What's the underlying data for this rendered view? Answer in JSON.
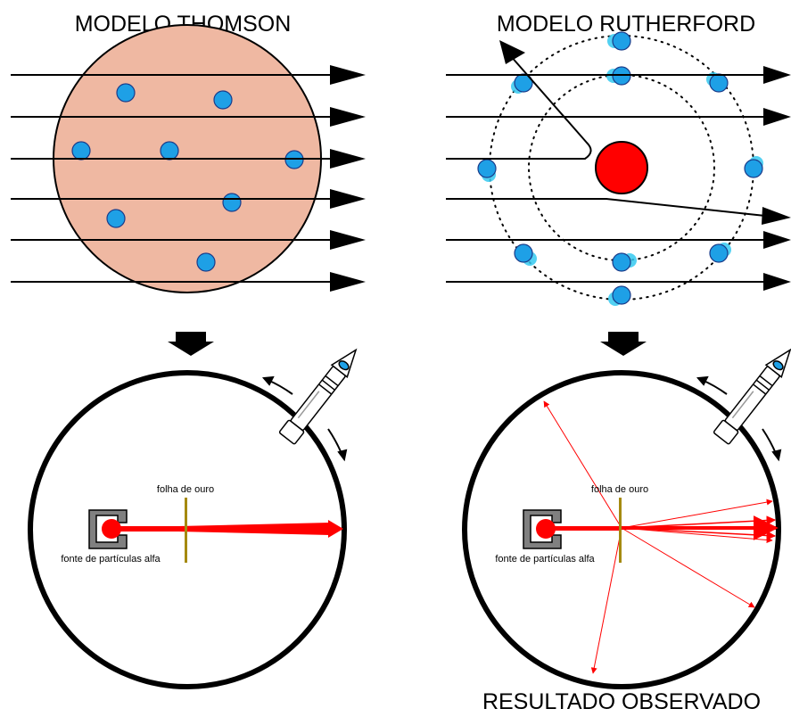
{
  "diagram": {
    "title_left": "MODELO THOMSON",
    "title_right": "MODELO RUTHERFORD",
    "caption_bottom": "RESULTADO OBSERVADO",
    "label_gold_foil": "folha de ouro",
    "label_alpha_source": "fonte de partículas alfa",
    "colors": {
      "thomson_sphere": "#efb8a2",
      "electron": "#1ea0e6",
      "electron_glow": "#35c9f0",
      "nucleus": "#ff0000",
      "alpha_beam": "#ff0000",
      "gold_foil": "#a58a10",
      "source_box": "#808080",
      "outline": "#000000"
    },
    "icons": [
      "down-arrow-icon",
      "microscope-detector-icon",
      "rotation-arrows-icon"
    ]
  }
}
